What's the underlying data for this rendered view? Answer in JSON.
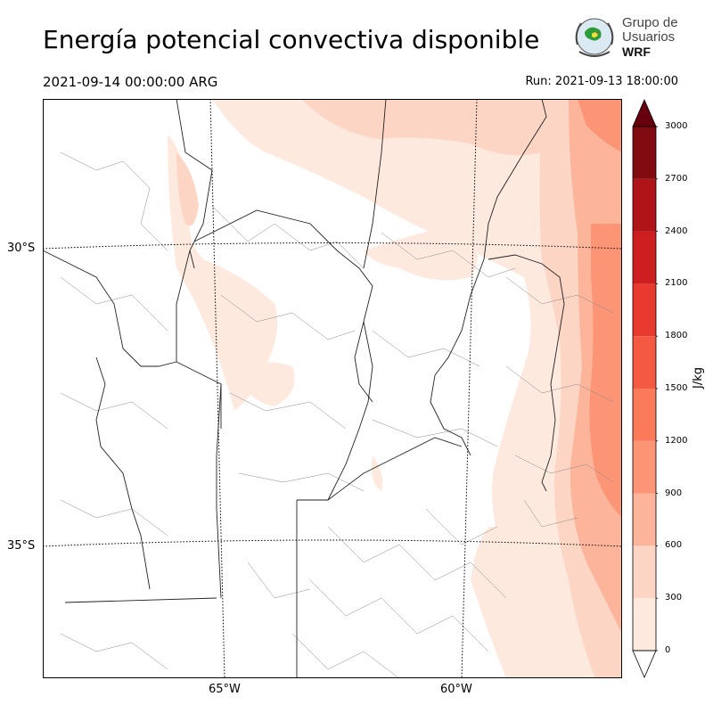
{
  "header": {
    "title": "Energía potencial convectiva disponible",
    "valid_time": "2021-09-14 00:00:00 ARG",
    "run_time": "Run: 2021-09-13 18:00:00"
  },
  "logo": {
    "line1": "Grupo de",
    "line2": "Usuarios",
    "line3": "WRF"
  },
  "map": {
    "lat_labels": [
      "30°S",
      "35°S"
    ],
    "lon_labels": [
      "65°W",
      "60°W"
    ]
  },
  "colorbar": {
    "unit": "J/kg",
    "ticks": [
      "0",
      "300",
      "600",
      "900",
      "1200",
      "1500",
      "1800",
      "2100",
      "2400",
      "2700",
      "3000"
    ],
    "colors": [
      "#fee9df",
      "#fdd5c4",
      "#fcb59a",
      "#fc9576",
      "#fb7a5a",
      "#f45a41",
      "#e83a2f",
      "#cd1e20",
      "#ae1418",
      "#800b10"
    ],
    "extend": "both",
    "under_color": "#ffffff",
    "over_color": "#67000d"
  }
}
